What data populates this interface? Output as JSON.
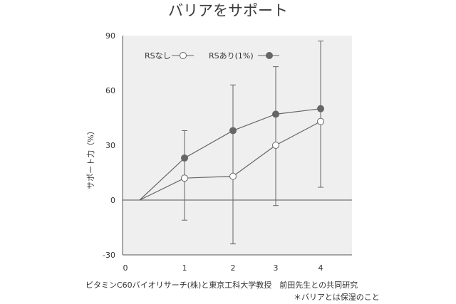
{
  "chart_data": {
    "type": "line",
    "title": "バリアをサポート",
    "xlabel": "",
    "ylabel": "サポート力（%）",
    "x": [
      0,
      1,
      2,
      3,
      4
    ],
    "xticks": [
      "0",
      "1",
      "2",
      "3",
      "4"
    ],
    "ylim": [
      -30,
      90
    ],
    "yticks": [
      "90",
      "60",
      "30",
      "0",
      "-30"
    ],
    "legend_position": "top-left",
    "series": [
      {
        "name": "RSなし",
        "marker": "open",
        "color": "#666666",
        "values": [
          0,
          12,
          13,
          30,
          43
        ],
        "error_low": [
          null,
          -11,
          -24,
          -3,
          7
        ],
        "error_high": [
          null,
          12,
          13,
          30,
          87
        ]
      },
      {
        "name": "RSあり(1%)",
        "marker": "filled",
        "color": "#666666",
        "values": [
          0,
          23,
          38,
          47,
          50
        ],
        "error_low": [
          null,
          12,
          13,
          30,
          43
        ],
        "error_high": [
          null,
          38,
          63,
          73,
          50
        ]
      }
    ],
    "annotations": [
      "ビタミンC60バイオリサーチ(株)と東京工科大学教授　前田先生との共同研究",
      "＊バリアとは保湿のこと"
    ],
    "colors": {
      "plot_background": "#efefef",
      "axis": "#555555",
      "line": "#666666"
    }
  }
}
